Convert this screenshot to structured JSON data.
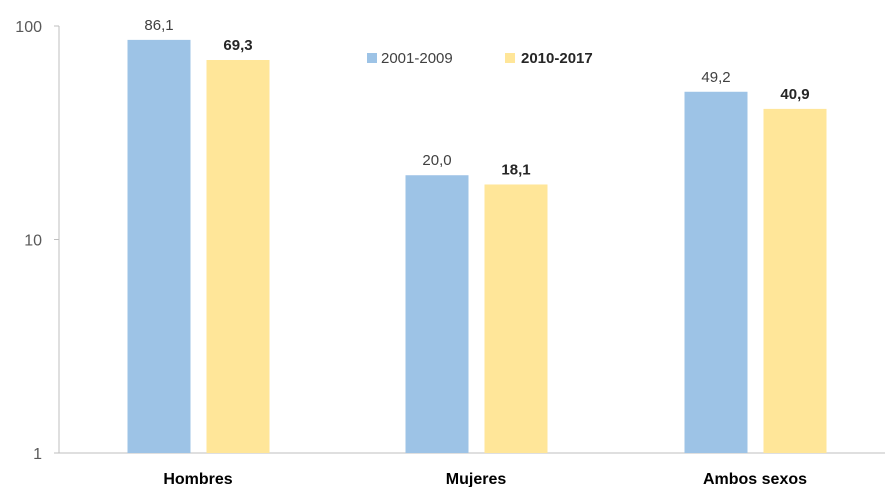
{
  "chart_data": {
    "type": "bar",
    "yscale": "log",
    "ylim": [
      1,
      100
    ],
    "yticks": [
      {
        "value": 100,
        "label": "100"
      },
      {
        "value": 10,
        "label": "10"
      },
      {
        "value": 1,
        "label": "1"
      }
    ],
    "categories": [
      "Hombres",
      "Mujeres",
      "Ambos sexos"
    ],
    "series": [
      {
        "name": "2001-2009",
        "color": "#9dc3e6",
        "bold_labels": false,
        "values": [
          86.1,
          20.0,
          49.2
        ],
        "value_labels": [
          "86,1",
          "20,0",
          "49,2"
        ]
      },
      {
        "name": "2010-2017",
        "color": "#ffe699",
        "bold_labels": true,
        "values": [
          69.3,
          18.1,
          40.9
        ],
        "value_labels": [
          "69,3",
          "18,1",
          "40,9"
        ]
      }
    ],
    "legend_position": "top-center",
    "grid": false
  }
}
